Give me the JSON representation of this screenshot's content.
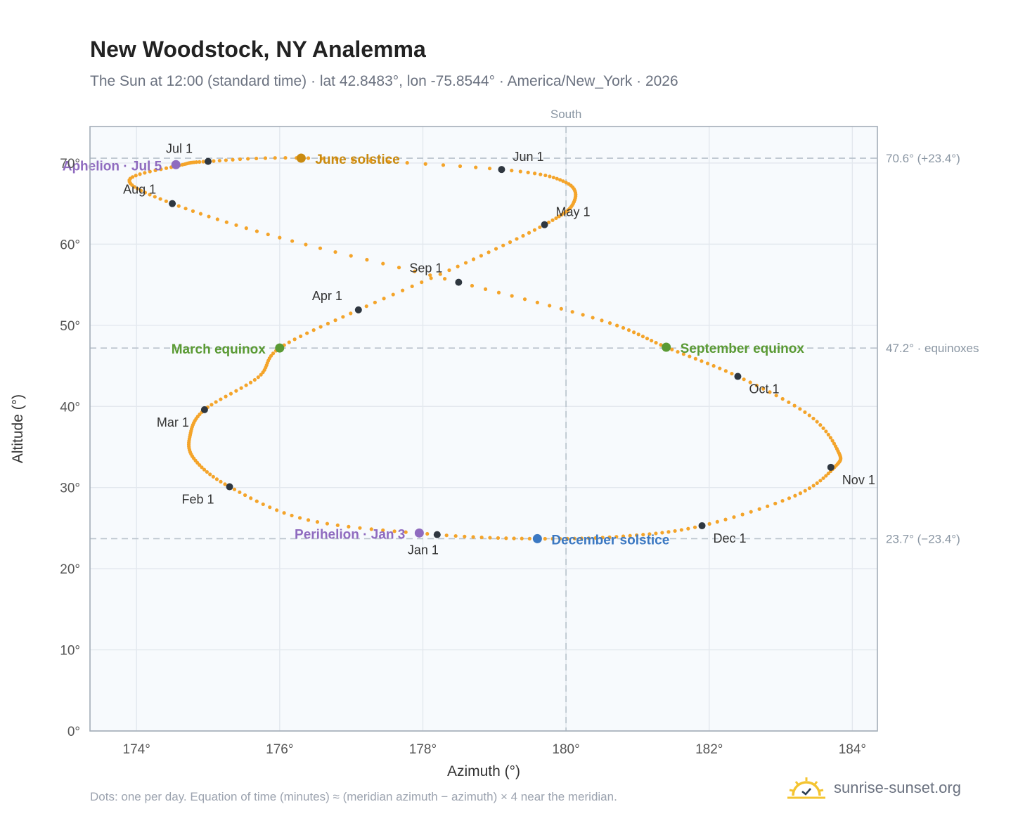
{
  "title": "New Woodstock, NY Analemma",
  "subtitle": "The Sun at 12:00 (standard time) · lat 42.8483°, lon -75.8544° · America/New_York · 2026",
  "footnote": "Dots: one per day. Equation of time (minutes) ≈ (meridian azimuth − azimuth) × 4 near the meridian.",
  "brand": {
    "name": "sunrise-sunset.org",
    "icon": "sun-logo-icon",
    "color": "#f4c430"
  },
  "chart_data": {
    "type": "scatter",
    "xlabel": "Azimuth (°)",
    "ylabel": "Altitude (°)",
    "xlim": [
      173.35,
      184.35
    ],
    "ylim": [
      0,
      74.5
    ],
    "xticks": [
      174,
      176,
      178,
      180,
      182,
      184
    ],
    "yticks": [
      0,
      10,
      20,
      30,
      40,
      50,
      60,
      70
    ],
    "grid": true,
    "meridian": {
      "value": 180,
      "label": "South"
    },
    "reference_lines": [
      {
        "value": 70.6,
        "label": "70.6° (+23.4°)"
      },
      {
        "value": 47.2,
        "label": "47.2° · equinoxes"
      },
      {
        "value": 23.7,
        "label": "23.7° (−23.4°)"
      }
    ],
    "curve_color": "#f4a42a",
    "curve_keypoints": [
      [
        178.2,
        24.2
      ],
      [
        176.4,
        26.0
      ],
      [
        175.3,
        30.1
      ],
      [
        174.8,
        33.6
      ],
      [
        174.75,
        36.5
      ],
      [
        174.95,
        39.6
      ],
      [
        175.7,
        43.6
      ],
      [
        176.0,
        47.2
      ],
      [
        177.1,
        51.9
      ],
      [
        178.6,
        57.7
      ],
      [
        179.7,
        62.4
      ],
      [
        180.1,
        65.0
      ],
      [
        180.0,
        67.6
      ],
      [
        179.1,
        69.2
      ],
      [
        176.4,
        70.6
      ],
      [
        175.0,
        70.2
      ],
      [
        174.6,
        69.7
      ],
      [
        173.9,
        67.9
      ],
      [
        174.5,
        65.0
      ],
      [
        176.0,
        60.8
      ],
      [
        178.5,
        55.3
      ],
      [
        180.5,
        50.6
      ],
      [
        181.4,
        47.3
      ],
      [
        182.4,
        43.7
      ],
      [
        183.4,
        38.9
      ],
      [
        183.8,
        34.5
      ],
      [
        183.75,
        32.5
      ],
      [
        183.2,
        29.0
      ],
      [
        181.9,
        25.3
      ],
      [
        180.8,
        24.0
      ],
      [
        179.6,
        23.7
      ],
      [
        178.2,
        24.2
      ]
    ],
    "month_markers": [
      {
        "label": "Jan 1",
        "x": 178.2,
        "y": 24.2
      },
      {
        "label": "Feb 1",
        "x": 175.3,
        "y": 30.1
      },
      {
        "label": "Mar 1",
        "x": 174.95,
        "y": 39.6
      },
      {
        "label": "Apr 1",
        "x": 177.1,
        "y": 51.9
      },
      {
        "label": "May 1",
        "x": 179.7,
        "y": 62.4
      },
      {
        "label": "Jun 1",
        "x": 179.1,
        "y": 69.2
      },
      {
        "label": "Jul 1",
        "x": 175.0,
        "y": 70.2
      },
      {
        "label": "Aug 1",
        "x": 174.5,
        "y": 65.0
      },
      {
        "label": "Sep 1",
        "x": 178.5,
        "y": 55.3
      },
      {
        "label": "Oct 1",
        "x": 182.4,
        "y": 43.7
      },
      {
        "label": "Nov 1",
        "x": 183.7,
        "y": 32.5
      },
      {
        "label": "Dec 1",
        "x": 181.9,
        "y": 25.3
      }
    ],
    "events": [
      {
        "label": "June solstice",
        "x": 176.3,
        "y": 70.6,
        "color": "#c98a10"
      },
      {
        "label": "December solstice",
        "x": 179.6,
        "y": 23.7,
        "color": "#3b78c2"
      },
      {
        "label": "March equinox",
        "x": 176.0,
        "y": 47.2,
        "color": "#5a9a34"
      },
      {
        "label": "September equinox",
        "x": 181.4,
        "y": 47.3,
        "color": "#5a9a34"
      },
      {
        "label": "Aphelion · Jul 5",
        "x": 174.55,
        "y": 69.8,
        "color": "#8f6bbf"
      },
      {
        "label": "Perihelion · Jan 3",
        "x": 177.95,
        "y": 24.4,
        "color": "#8f6bbf"
      }
    ]
  }
}
